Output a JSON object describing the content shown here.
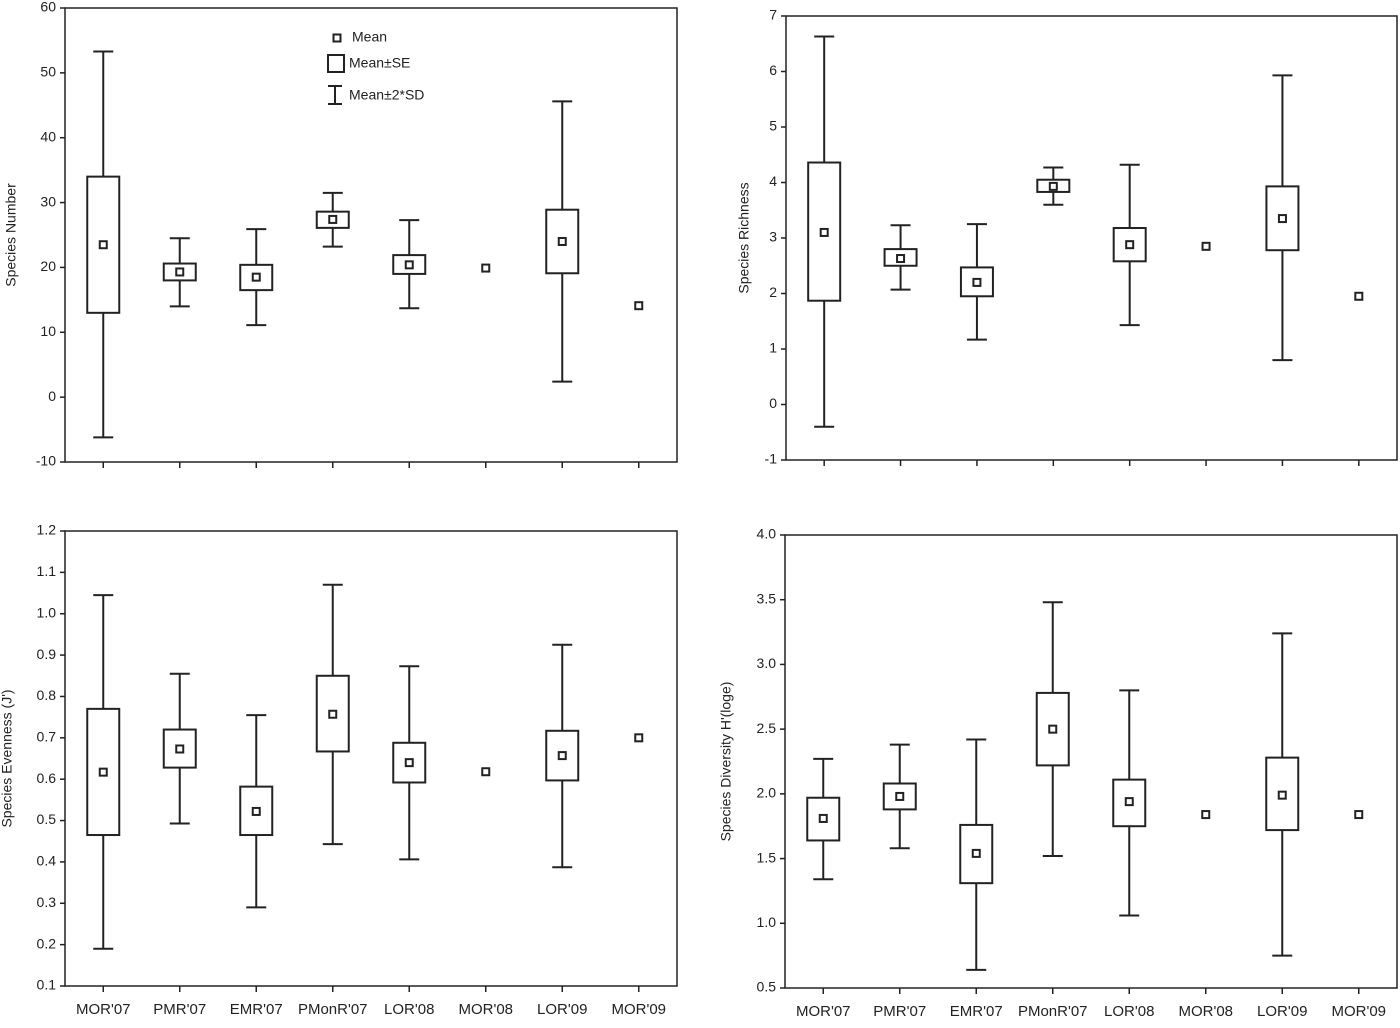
{
  "chart_data": [
    {
      "type": "box",
      "ylabel": "Species Number",
      "legend": [
        "Mean",
        "Mean±SE",
        "Mean±2*SD"
      ],
      "categories": [
        null,
        null,
        null,
        null,
        null,
        null,
        null,
        null
      ],
      "mean": [
        23.5,
        19.3,
        18.5,
        27.4,
        20.4,
        19.9,
        24,
        14.1
      ],
      "se_low": [
        13,
        18,
        16.5,
        26.1,
        19,
        null,
        19.1,
        null
      ],
      "se_high": [
        34,
        20.6,
        20.4,
        28.6,
        21.9,
        null,
        28.9,
        null
      ],
      "sd_low": [
        -6.2,
        14,
        11.1,
        23.2,
        13.7,
        null,
        2.4,
        null
      ],
      "sd_high": [
        53.3,
        24.5,
        25.9,
        31.5,
        27.3,
        null,
        45.6,
        null
      ],
      "ylim": [
        -10,
        60
      ],
      "yticks": [
        -10,
        0,
        10,
        20,
        30,
        40,
        50,
        60
      ]
    },
    {
      "type": "box",
      "ylabel": "Species Richness",
      "categories": [
        null,
        null,
        null,
        null,
        null,
        null,
        null,
        null
      ],
      "mean": [
        3.1,
        2.63,
        2.2,
        3.93,
        2.88,
        2.85,
        3.35,
        1.95
      ],
      "se_low": [
        1.87,
        2.5,
        1.95,
        3.83,
        2.58,
        null,
        2.78,
        null
      ],
      "se_high": [
        4.36,
        2.8,
        2.47,
        4.05,
        3.18,
        null,
        3.93,
        null
      ],
      "sd_low": [
        -0.4,
        2.07,
        1.17,
        3.6,
        1.43,
        null,
        0.8,
        null
      ],
      "sd_high": [
        6.63,
        3.23,
        3.25,
        4.27,
        4.32,
        null,
        5.93,
        null
      ],
      "ylim": [
        -1,
        7
      ],
      "yticks": [
        -1,
        0,
        1,
        2,
        3,
        4,
        5,
        6,
        7
      ]
    },
    {
      "type": "box",
      "ylabel": "Species Evenness (J')",
      "categories": [
        "MOR'07",
        "PMR'07",
        "EMR'07",
        "PMonR'07",
        "LOR'08",
        "MOR'08",
        "LOR'09",
        "MOR'09"
      ],
      "mean": [
        0.617,
        0.673,
        0.522,
        0.757,
        0.64,
        0.618,
        0.657,
        0.7
      ],
      "se_low": [
        0.465,
        0.628,
        0.465,
        0.667,
        0.592,
        null,
        0.597,
        null
      ],
      "se_high": [
        0.77,
        0.72,
        0.582,
        0.85,
        0.688,
        null,
        0.717,
        null
      ],
      "sd_low": [
        0.19,
        0.493,
        0.29,
        0.443,
        0.406,
        null,
        0.387,
        null
      ],
      "sd_high": [
        1.045,
        0.855,
        0.755,
        1.07,
        0.873,
        null,
        0.925,
        null
      ],
      "ylim": [
        0.1,
        1.2
      ],
      "yticks": [
        0.1,
        0.2,
        0.3,
        0.4,
        0.5,
        0.6,
        0.7,
        0.8,
        0.9,
        {
          "value": 1,
          "label": "1.0"
        },
        1.1,
        1.2
      ]
    },
    {
      "type": "box",
      "ylabel": "Species Diversity H'(loge)",
      "categories": [
        "MOR'07",
        "PMR'07",
        "EMR'07",
        "PMonR'07",
        "LOR'08",
        "MOR'08",
        "LOR'09",
        "MOR'09"
      ],
      "mean": [
        1.81,
        1.98,
        1.54,
        2.5,
        1.94,
        1.84,
        1.99,
        1.84
      ],
      "se_low": [
        1.64,
        1.88,
        1.31,
        2.22,
        1.75,
        null,
        1.72,
        null
      ],
      "se_high": [
        1.97,
        2.08,
        1.76,
        2.78,
        2.11,
        null,
        2.28,
        null
      ],
      "sd_low": [
        1.34,
        1.58,
        0.64,
        1.52,
        1.06,
        null,
        0.75,
        null
      ],
      "sd_high": [
        2.27,
        2.38,
        2.42,
        3.48,
        2.8,
        null,
        3.24,
        null
      ],
      "ylim": [
        0.5,
        4.0
      ],
      "yticks": [
        0.5,
        {
          "value": 1,
          "label": "1.0"
        },
        1.5,
        {
          "value": 2,
          "label": "2.0"
        },
        2.5,
        {
          "value": 3,
          "label": "3.0"
        },
        3.5,
        {
          "value": 4,
          "label": "4.0"
        }
      ]
    }
  ]
}
